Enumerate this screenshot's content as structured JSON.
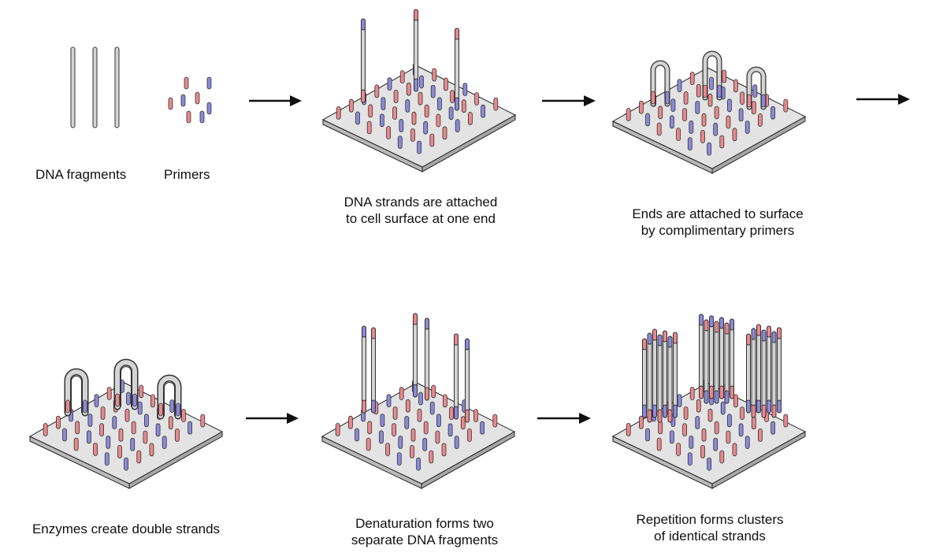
{
  "captions": {
    "dna_fragments": "DNA fragments",
    "primers": "Primers",
    "step2": [
      "DNA strands are attached",
      "to cell surface at one end"
    ],
    "step3": [
      "Ends are attached to surface",
      "by complimentary primers"
    ],
    "step4": [
      "Enzymes create double strands"
    ],
    "step5": [
      "Denaturation forms two",
      "separate DNA fragments"
    ],
    "step6": [
      "Repetition forms clusters",
      "of identical strands"
    ]
  },
  "colors": {
    "primer_red": "#e8888e",
    "primer_blue": "#8c89d8",
    "strand_fill": "#d4d4d4",
    "plate_top": "#e3e3e3",
    "plate_side": "#b9b9b9",
    "arrow": "#111111"
  }
}
